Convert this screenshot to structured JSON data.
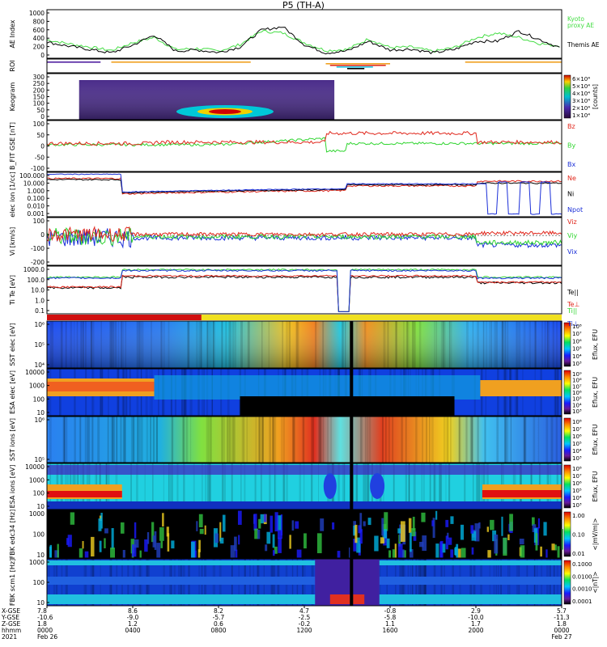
{
  "title": "P5 (TH-A)",
  "colors": {
    "kyoto": "#44dd44",
    "themis": "#000000",
    "red": "#e0261b",
    "green": "#2fd52f",
    "blue": "#1b2fd8",
    "black": "#000000"
  },
  "chart_data": [
    {
      "type": "line",
      "name": "ae",
      "ylabel": "AE Index",
      "ylim": [
        0,
        1000
      ],
      "yticks": [
        "0",
        "200",
        "400",
        "600",
        "800",
        "1000"
      ],
      "x_hours": [
        0,
        1,
        2,
        3,
        4,
        5,
        6,
        7,
        8,
        9,
        10,
        11,
        12,
        13,
        14,
        15,
        16,
        17,
        18,
        19,
        20,
        21,
        22,
        23,
        24
      ],
      "series": [
        {
          "name": "Kyoto proxy AE",
          "color": "#44dd44",
          "values": [
            380,
            300,
            230,
            160,
            320,
            430,
            180,
            200,
            150,
            280,
            560,
            520,
            320,
            160,
            180,
            400,
            220,
            230,
            140,
            220,
            420,
            520,
            430,
            300,
            250
          ]
        },
        {
          "name": "Themis AE",
          "color": "#000000",
          "values": [
            330,
            250,
            180,
            110,
            270,
            480,
            150,
            170,
            120,
            230,
            580,
            650,
            280,
            110,
            150,
            350,
            170,
            190,
            110,
            180,
            350,
            350,
            560,
            380,
            200
          ]
        }
      ],
      "legend": [
        "Kyoto",
        "proxy AE",
        "Themis AE"
      ]
    },
    {
      "type": "table",
      "name": "roi",
      "ylabel": "ROI"
    },
    {
      "type": "heatmap",
      "name": "keogram",
      "ylabel": "Keogram",
      "ylim": [
        0,
        300
      ],
      "yticks": [
        "0",
        "50",
        "100",
        "150",
        "200",
        "250",
        "300"
      ],
      "colorbar_ticks": [
        "6×10⁴",
        "5×10⁴",
        "4×10⁴",
        "3×10⁴",
        "2×10⁴",
        "1×10⁴"
      ],
      "colorbar_label": "[counts]"
    },
    {
      "type": "line",
      "name": "bfield",
      "ylabel": "B_FIT GSE [nT]",
      "ylim": [
        -100,
        100
      ],
      "yticks": [
        "-100",
        "-50",
        "0",
        "50",
        "100"
      ],
      "legend": [
        "Bz",
        "By",
        "Bx"
      ]
    },
    {
      "type": "line",
      "name": "density",
      "ylabel": "elec ion [1/cc]",
      "ylim": [
        0.001,
        100
      ],
      "log": true,
      "yticks": [
        "100.000",
        "10.000",
        "1.000",
        "0.100",
        "0.010",
        "0.001"
      ],
      "legend": [
        "Ne",
        "Ni",
        "Npot"
      ]
    },
    {
      "type": "line",
      "name": "velocity",
      "ylabel": "Vi [km/s]",
      "ylim": [
        -250,
        150
      ],
      "yticks": [
        "100",
        "0",
        "-100",
        "-200"
      ],
      "legend": [
        "Viz",
        "Viy",
        "Vix"
      ]
    },
    {
      "type": "line",
      "name": "temperature",
      "ylabel": "Ti Te [eV]",
      "ylim": [
        0.1,
        1000
      ],
      "log": true,
      "yticks": [
        "1000.0",
        "100.0",
        "10.0",
        "1.0",
        "0.1"
      ],
      "legend": [
        "Te||",
        "Te⊥",
        "Ti||",
        "Ti⊥"
      ]
    },
    {
      "type": "heatmap",
      "name": "sst-elec",
      "ylabel": "SST elec [eV]",
      "yticks": [
        "10⁶",
        "10⁵",
        "10⁴"
      ],
      "colorbar_ticks": [
        "10⁸",
        "10⁷",
        "10⁶",
        "10⁵",
        "10⁴",
        "10³"
      ],
      "colorbar_label": "Eflux, EFU"
    },
    {
      "type": "heatmap",
      "name": "esa-elec",
      "ylabel": "ESA elec [eV]",
      "yticks": [
        "10000",
        "1000",
        "100",
        "10"
      ],
      "colorbar_ticks": [
        "10⁹",
        "10⁸",
        "10⁷",
        "10⁶",
        "10⁵",
        "10⁴",
        "10³"
      ],
      "colorbar_label": "Eflux, EFU"
    },
    {
      "type": "heatmap",
      "name": "sst-ion",
      "ylabel": "SST ions [eV]",
      "yticks": [
        "10⁶",
        "10⁵"
      ],
      "colorbar_ticks": [
        "10⁸",
        "10⁷",
        "10⁶",
        "10⁵",
        "10⁴",
        "10³"
      ],
      "colorbar_label": "Eflux, EFU"
    },
    {
      "type": "heatmap",
      "name": "esa-ion",
      "ylabel": "ESA ions [eV]",
      "yticks": [
        "10000",
        "1000",
        "100",
        "10"
      ],
      "colorbar_ticks": [
        "10⁸",
        "10⁷",
        "10⁶",
        "10⁵",
        "10⁴",
        "10³"
      ],
      "colorbar_label": "Eflux, EFU"
    },
    {
      "type": "heatmap",
      "name": "fbk-e",
      "ylabel": "FBK edc34 [Hz]",
      "yticks": [
        "1000",
        "100",
        "10"
      ],
      "colorbar_ticks": [
        "1.00",
        "0.10",
        "0.01"
      ],
      "colorbar_label": "<|mV/m|>"
    },
    {
      "type": "heatmap",
      "name": "fbk-b",
      "ylabel": "FBK scm1 [Hz]",
      "yticks": [
        "1000",
        "100",
        "10"
      ],
      "colorbar_ticks": [
        "0.1000",
        "0.0100",
        "0.0010",
        "0.0001"
      ],
      "colorbar_label": "<|nT|>"
    }
  ],
  "xaxis": {
    "row_labels": [
      "X-GSE",
      "Y-GSE",
      "Z-GSE",
      "hhmm",
      "2021"
    ],
    "ticks": [
      {
        "x": "7.8",
        "y": "-10.6",
        "z": "1.8",
        "t": "0000",
        "d": "Feb 26"
      },
      {
        "x": "8.6",
        "y": "-9.0",
        "z": "1.2",
        "t": "0400",
        "d": ""
      },
      {
        "x": "8.2",
        "y": "-5.7",
        "z": "0.6",
        "t": "0800",
        "d": ""
      },
      {
        "x": "4.7",
        "y": "-2.5",
        "z": "-0.2",
        "t": "1200",
        "d": ""
      },
      {
        "x": "-0.8",
        "y": "-5.8",
        "z": "1.1",
        "t": "1600",
        "d": ""
      },
      {
        "x": "2.9",
        "y": "-10.0",
        "z": "1.7",
        "t": "2000",
        "d": ""
      },
      {
        "x": "5.7",
        "y": "-11.3",
        "z": "1.8",
        "t": "0000",
        "d": "Feb 27"
      }
    ]
  }
}
